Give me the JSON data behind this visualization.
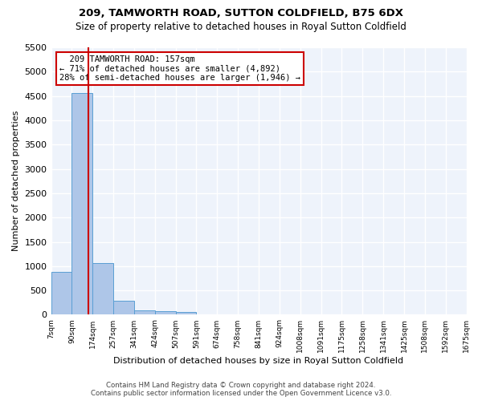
{
  "title": "209, TAMWORTH ROAD, SUTTON COLDFIELD, B75 6DX",
  "subtitle": "Size of property relative to detached houses in Royal Sutton Coldfield",
  "xlabel": "Distribution of detached houses by size in Royal Sutton Coldfield",
  "ylabel": "Number of detached properties",
  "bar_color": "#aec6e8",
  "bar_edge_color": "#5a9fd4",
  "bin_labels": [
    "7sqm",
    "90sqm",
    "174sqm",
    "257sqm",
    "341sqm",
    "424sqm",
    "507sqm",
    "591sqm",
    "674sqm",
    "758sqm",
    "841sqm",
    "924sqm",
    "1008sqm",
    "1091sqm",
    "1175sqm",
    "1258sqm",
    "1341sqm",
    "1425sqm",
    "1508sqm",
    "1592sqm",
    "1675sqm"
  ],
  "bar_values": [
    880,
    4560,
    1060,
    285,
    95,
    80,
    55,
    0,
    0,
    0,
    0,
    0,
    0,
    0,
    0,
    0,
    0,
    0,
    0,
    0
  ],
  "ylim": [
    0,
    5500
  ],
  "yticks": [
    0,
    500,
    1000,
    1500,
    2000,
    2500,
    3000,
    3500,
    4000,
    4500,
    5000,
    5500
  ],
  "property_size": 157,
  "property_label": "209 TAMWORTH ROAD: 157sqm",
  "pct_smaller": 71,
  "n_smaller": 4892,
  "pct_larger_semi": 28,
  "n_larger_semi": 1946,
  "vline_color": "#cc0000",
  "annotation_box_color": "#cc0000",
  "footer_line1": "Contains HM Land Registry data © Crown copyright and database right 2024.",
  "footer_line2": "Contains public sector information licensed under the Open Government Licence v3.0.",
  "background_color": "#eef3fb",
  "grid_color": "#ffffff"
}
